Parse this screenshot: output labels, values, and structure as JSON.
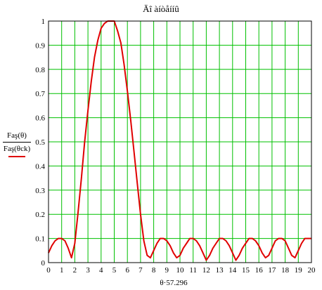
{
  "chart_data": {
    "type": "line",
    "title": "Äî àíòåííû",
    "ylabel": {
      "numerator": "Faş(θ)",
      "denominator": "Faş(θck)"
    },
    "xlabel": "θ·57.296",
    "xlim": [
      0,
      20
    ],
    "ylim": [
      0,
      1
    ],
    "x_ticks": [
      "0",
      "1",
      "2",
      "3",
      "4",
      "5",
      "6",
      "7",
      "8",
      "9",
      "10",
      "11",
      "12",
      "13",
      "14",
      "15",
      "16",
      "17",
      "18",
      "19",
      "20"
    ],
    "y_ticks": [
      "0",
      "0.1",
      "0.2",
      "0.3",
      "0.4",
      "0.5",
      "0.6",
      "0.7",
      "0.8",
      "0.9",
      "1"
    ],
    "grid": true,
    "colors": {
      "grid": "#00c000",
      "series": "#e00000",
      "axes": "#000000"
    },
    "series": [
      {
        "x": [
          0,
          0.25,
          0.5,
          0.75,
          1.0,
          1.25,
          1.5,
          1.75,
          2.0,
          2.25,
          2.5,
          2.75,
          3.0,
          3.25,
          3.5,
          3.75,
          4.0,
          4.25,
          4.5,
          4.75,
          5.0,
          5.25,
          5.5,
          5.75,
          6.0,
          6.25,
          6.5,
          6.75,
          7.0,
          7.25,
          7.5,
          7.75,
          8.0,
          8.25,
          8.5,
          8.75,
          9.0,
          9.25,
          9.5,
          9.75,
          10.0,
          10.25,
          10.5,
          10.75,
          11.0,
          11.25,
          11.5,
          11.75,
          12.0,
          12.25,
          12.5,
          12.75,
          13.0,
          13.25,
          13.5,
          13.75,
          14.0,
          14.25,
          14.5,
          14.75,
          15.0,
          15.25,
          15.5,
          15.75,
          16.0,
          16.25,
          16.5,
          16.75,
          17.0,
          17.25,
          17.5,
          17.75,
          18.0,
          18.25,
          18.5,
          18.75,
          19.0,
          19.25,
          19.5,
          19.75,
          20.0
        ],
        "y": [
          0.04,
          0.07,
          0.09,
          0.1,
          0.1,
          0.09,
          0.06,
          0.02,
          0.08,
          0.21,
          0.35,
          0.5,
          0.63,
          0.75,
          0.85,
          0.92,
          0.97,
          0.99,
          1.0,
          1.0,
          1.0,
          0.96,
          0.91,
          0.82,
          0.71,
          0.59,
          0.46,
          0.33,
          0.2,
          0.09,
          0.03,
          0.02,
          0.05,
          0.08,
          0.1,
          0.1,
          0.09,
          0.07,
          0.04,
          0.02,
          0.03,
          0.06,
          0.08,
          0.1,
          0.1,
          0.09,
          0.07,
          0.04,
          0.01,
          0.03,
          0.06,
          0.08,
          0.1,
          0.1,
          0.09,
          0.07,
          0.04,
          0.01,
          0.03,
          0.06,
          0.08,
          0.1,
          0.1,
          0.09,
          0.07,
          0.04,
          0.02,
          0.03,
          0.06,
          0.09,
          0.1,
          0.1,
          0.09,
          0.06,
          0.03,
          0.02,
          0.05,
          0.08,
          0.1,
          0.1,
          0.1
        ]
      }
    ]
  }
}
